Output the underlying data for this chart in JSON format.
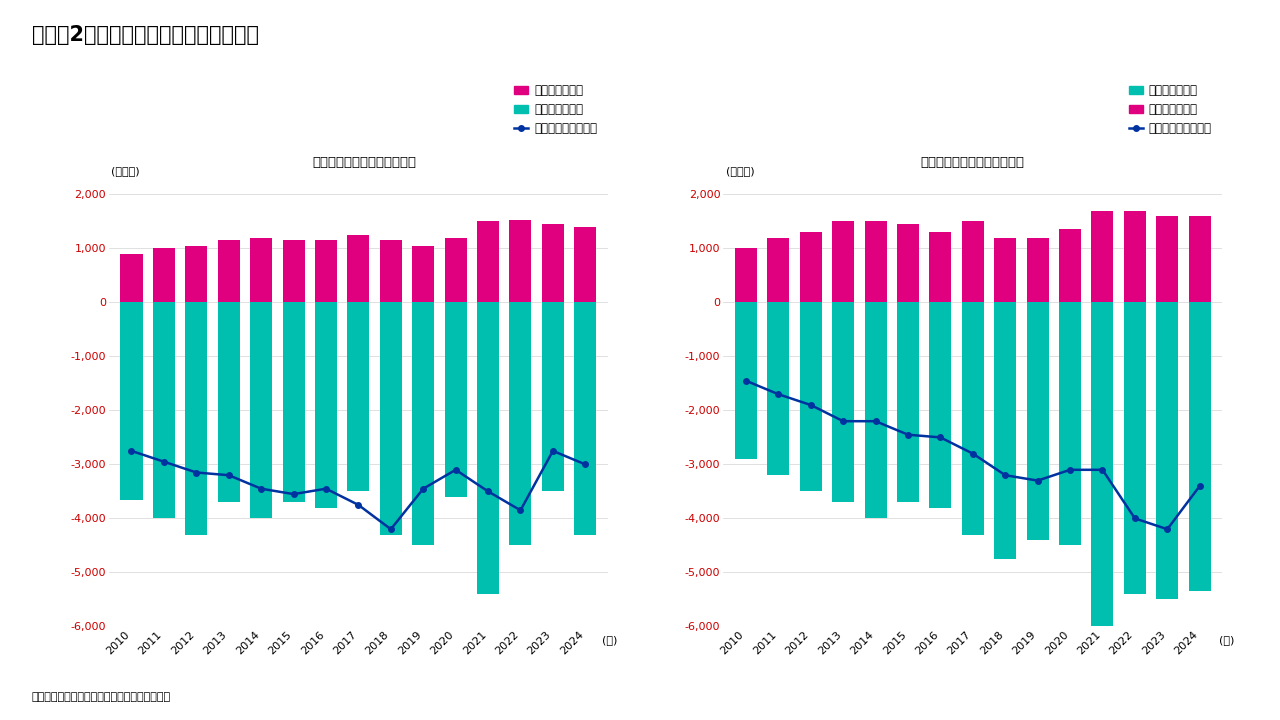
{
  "title": "（図表2）　米国の対中貿易収支の推移",
  "subtitle_left": "－米国側統計に基づく計数－",
  "subtitle_right": "－中国側統計に基づく計数－",
  "source": "（出所）ブルームバーグよりインベスコが作成",
  "years": [
    2010,
    2011,
    2012,
    2013,
    2014,
    2015,
    2016,
    2017,
    2018,
    2019,
    2020,
    2021,
    2022,
    2023,
    2024
  ],
  "left": {
    "exports": [
      900,
      1000,
      1050,
      1150,
      1200,
      1150,
      1150,
      1250,
      1150,
      1050,
      1200,
      1500,
      1530,
      1450,
      1400
    ],
    "imports": [
      -3650,
      -4000,
      -4300,
      -3700,
      -4000,
      -3700,
      -3800,
      -3500,
      -4300,
      -4500,
      -3600,
      -5400,
      -4500,
      -3500,
      -4300
    ],
    "balance": [
      -2750,
      -2950,
      -3150,
      -3200,
      -3450,
      -3550,
      -3450,
      -3750,
      -4200,
      -3450,
      -3100,
      -3500,
      -3850,
      -2750,
      -3000
    ]
  },
  "right": {
    "imports": [
      -2900,
      -3200,
      -3500,
      -3700,
      -4000,
      -3700,
      -3800,
      -4300,
      -4750,
      -4400,
      -4500,
      -6150,
      -5400,
      -5500,
      -5350
    ],
    "exports": [
      1000,
      1200,
      1300,
      1500,
      1500,
      1450,
      1300,
      1500,
      1200,
      1200,
      1350,
      1700,
      1700,
      1600,
      1600
    ],
    "balance": [
      -1450,
      -1700,
      -1900,
      -2200,
      -2200,
      -2450,
      -2500,
      -2800,
      -3200,
      -3300,
      -3100,
      -3100,
      -4000,
      -4200,
      -3400
    ]
  },
  "color_exports": "#E0007F",
  "color_imports": "#00BFAF",
  "color_balance": "#0032A0",
  "color_ytick": "#CC0000",
  "color_background": "#FFFFFF",
  "ylim": [
    -6000,
    2000
  ],
  "yticks": [
    -6000,
    -5000,
    -4000,
    -3000,
    -2000,
    -1000,
    0,
    1000,
    2000
  ],
  "legend_left": [
    "中国向けの輸出",
    "中国からの輸入",
    "米国の対中貳易収支"
  ],
  "legend_right": [
    "中国からの輸入",
    "中国向けの輸出",
    "米国の対中貳易収支"
  ],
  "ylabel": "(億ドル)",
  "xlabel": "(年)"
}
